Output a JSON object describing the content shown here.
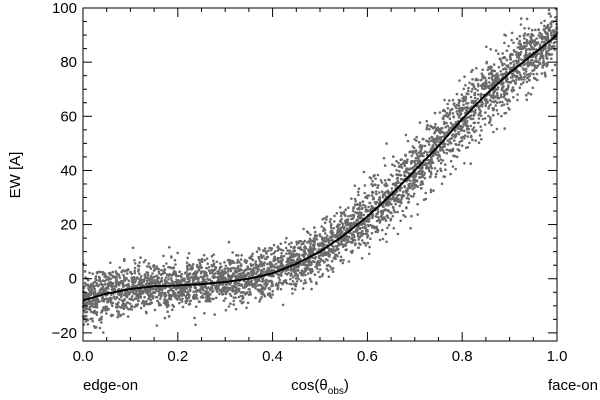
{
  "chart_data": {
    "type": "scatter",
    "title": "",
    "xlabel": "cos(θ",
    "xlabel_subscript": "obs",
    "xlabel_close": ")",
    "ylabel": "EW [A]",
    "x_annotation_left": "edge-on",
    "x_annotation_right": "face-on",
    "xlim": [
      0.0,
      1.0
    ],
    "ylim": [
      -23,
      100
    ],
    "x_ticks": [
      0.0,
      0.2,
      0.4,
      0.6,
      0.8,
      1.0
    ],
    "x_tick_labels": [
      "0.0",
      "0.2",
      "0.4",
      "0.6",
      "0.8",
      "1.0"
    ],
    "y_ticks": [
      -20,
      0,
      20,
      40,
      60,
      80,
      100
    ],
    "y_tick_labels": [
      "−20",
      "0",
      "20",
      "40",
      "60",
      "80",
      "100"
    ],
    "grid": false,
    "point_color": "#6a6a6a",
    "line_color": "#000000",
    "fit_line": {
      "x": [
        0.0,
        0.05,
        0.1,
        0.15,
        0.2,
        0.25,
        0.3,
        0.35,
        0.4,
        0.45,
        0.5,
        0.55,
        0.6,
        0.65,
        0.7,
        0.75,
        0.8,
        0.85,
        0.9,
        0.95,
        1.0
      ],
      "y": [
        -8,
        -5.5,
        -3.8,
        -2.8,
        -2.5,
        -2,
        -1.2,
        0,
        2,
        5.5,
        10,
        16,
        23,
        31,
        40,
        49,
        59,
        68,
        76,
        83,
        90
      ]
    },
    "scatter_spread": {
      "x": [
        0.0,
        0.1,
        0.2,
        0.3,
        0.4,
        0.5,
        0.6,
        0.7,
        0.8,
        0.9,
        1.0
      ],
      "half_width": [
        9,
        9,
        8,
        8,
        8,
        8,
        9,
        11,
        12,
        11,
        9
      ]
    }
  }
}
